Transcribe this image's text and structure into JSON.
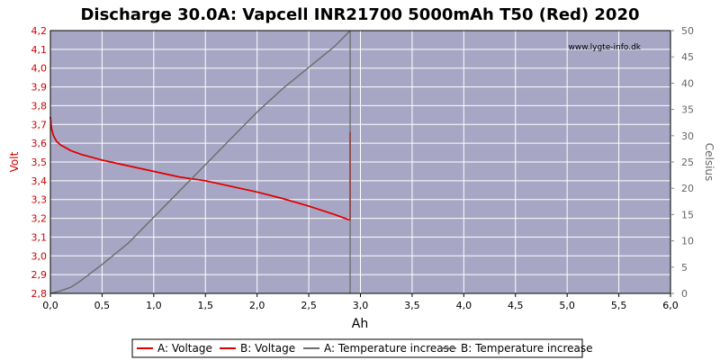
{
  "chart_data": {
    "type": "line",
    "title": "Discharge 30.0A: Vapcell INR21700 5000mAh T50 (Red) 2020",
    "watermark": "www.lygte-info.dk",
    "xlabel": "Ah",
    "ylabel_left": "Volt",
    "ylabel_right": "Celsius",
    "xlim": [
      0,
      6
    ],
    "ylim_left": [
      2.8,
      4.2
    ],
    "ylim_right": [
      0,
      50
    ],
    "x_ticks": [
      "0,0",
      "0,5",
      "1,0",
      "1,5",
      "2,0",
      "2,5",
      "3,0",
      "3,5",
      "4,0",
      "4,5",
      "5,0",
      "5,5",
      "6,0"
    ],
    "y_left_ticks": [
      "2,8",
      "2,9",
      "3,0",
      "3,1",
      "3,2",
      "3,3",
      "3,4",
      "3,5",
      "3,6",
      "3,7",
      "3,8",
      "3,9",
      "4,0",
      "4,1",
      "4,2"
    ],
    "y_right_ticks": [
      "0",
      "5",
      "10",
      "15",
      "20",
      "25",
      "30",
      "35",
      "40",
      "45",
      "50"
    ],
    "grid": true,
    "legend_position": "bottom",
    "colors": {
      "plot_bg": "#a7a7c5",
      "grid": "#ffffff",
      "voltage": "#e10000",
      "temperature": "#6e6e6e",
      "left_axis_text": "#d00000",
      "right_axis_text": "#666666"
    },
    "series": [
      {
        "name": "A: Voltage",
        "axis": "left",
        "color": "#e10000",
        "x": [
          0,
          0.01,
          0.03,
          0.06,
          0.1,
          0.2,
          0.3,
          0.5,
          0.75,
          1.0,
          1.25,
          1.5,
          1.75,
          2.0,
          2.25,
          2.5,
          2.75,
          2.9,
          2.9
        ],
        "y": [
          3.74,
          3.68,
          3.64,
          3.61,
          3.59,
          3.56,
          3.54,
          3.51,
          3.48,
          3.45,
          3.42,
          3.4,
          3.37,
          3.34,
          3.305,
          3.265,
          3.22,
          3.19,
          3.66
        ]
      },
      {
        "name": "B: Voltage",
        "axis": "left",
        "color": "#e10000",
        "x": [
          0,
          0.01,
          0.03,
          0.06,
          0.1,
          0.2,
          0.3,
          0.5,
          0.75,
          1.0,
          1.25,
          1.5,
          1.75,
          2.0,
          2.25,
          2.5,
          2.75,
          2.9,
          2.9
        ],
        "y": [
          3.74,
          3.68,
          3.64,
          3.61,
          3.59,
          3.56,
          3.54,
          3.51,
          3.48,
          3.45,
          3.42,
          3.4,
          3.37,
          3.34,
          3.305,
          3.265,
          3.22,
          3.19,
          3.66
        ]
      },
      {
        "name": "A: Temperature increase",
        "axis": "right",
        "color": "#6e6e6e",
        "x": [
          0,
          0.1,
          0.2,
          0.3,
          0.4,
          0.5,
          0.75,
          1.0,
          1.25,
          1.5,
          1.75,
          2.0,
          2.25,
          2.5,
          2.75,
          2.9,
          2.9
        ],
        "y": [
          0,
          0.5,
          1.2,
          2.5,
          4,
          5.5,
          9.5,
          14.5,
          19.5,
          24.5,
          29.5,
          34.5,
          39,
          43,
          47,
          50,
          50
        ]
      },
      {
        "name": "B: Temperature increase",
        "axis": "right",
        "color": "#6e6e6e",
        "x": [
          0,
          0.1,
          0.2,
          0.3,
          0.4,
          0.5,
          0.75,
          1.0,
          1.25,
          1.5,
          1.75,
          2.0,
          2.25,
          2.5,
          2.75,
          2.9,
          2.9
        ],
        "y": [
          0,
          0.5,
          1.2,
          2.5,
          4,
          5.5,
          9.5,
          14.5,
          19.5,
          24.5,
          29.5,
          34.5,
          39,
          43,
          47,
          50,
          50
        ]
      }
    ],
    "temperature_drop_to": 50,
    "temperature_drop_x": 2.9
  }
}
